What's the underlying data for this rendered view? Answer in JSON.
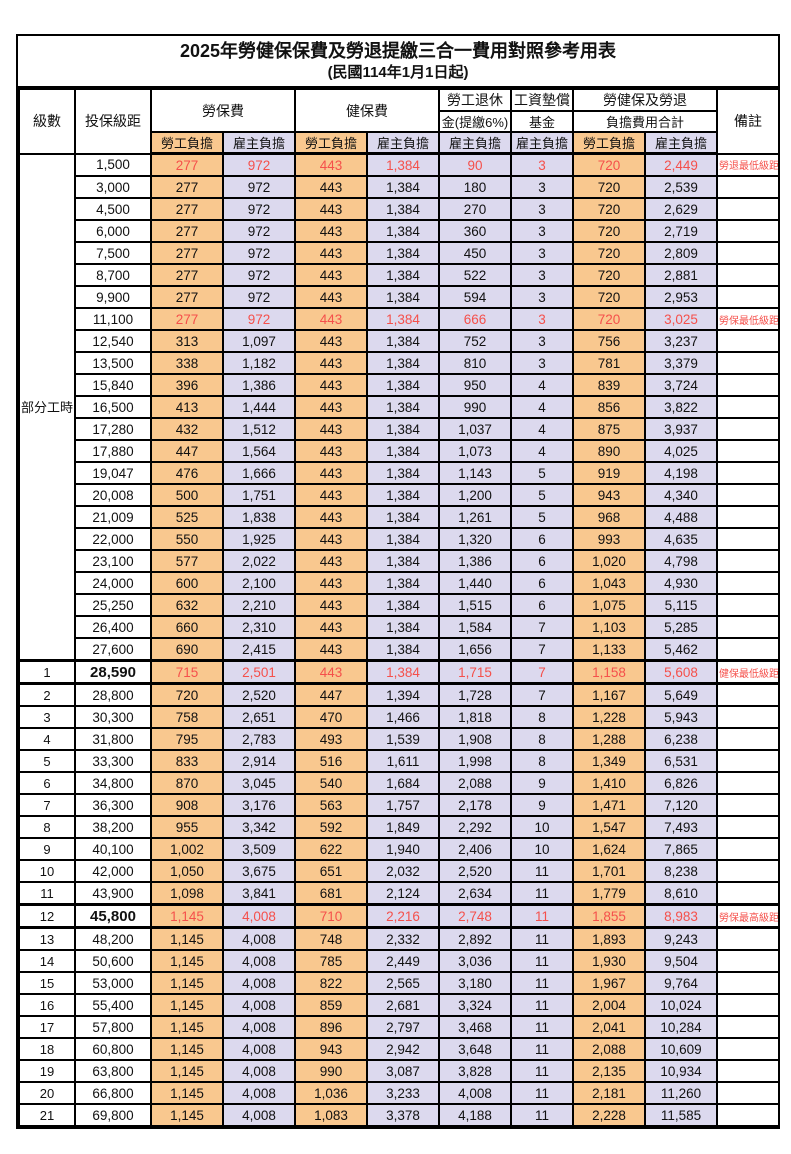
{
  "title": "2025年勞健保保費及勞退提繳三合一費用對照參考用表",
  "subtitle": "(民國114年1月1日起)",
  "colors": {
    "employee_bg": "#f9c88f",
    "employer_bg": "#dcd9ee",
    "highlight_text": "#f5504b",
    "grid": "#000000"
  },
  "header": {
    "level": "級數",
    "bracket": "投保級距",
    "labor_insurance": "勞保費",
    "health_insurance": "健保費",
    "pension_line1": "勞工退休",
    "pension_line2": "金(提繳6%)",
    "wage_fund_line1": "工資墊償",
    "wage_fund_line2": "基金",
    "total_line1": "勞健保及勞退",
    "total_line2": "負擔費用合計",
    "remark": "備註",
    "employee_label": "勞工負擔",
    "employer_label": "雇主負擔"
  },
  "column_value_names": [
    "labor-employee",
    "labor-employer",
    "health-employee",
    "health-employer",
    "pension-employer",
    "wage-fund-employer",
    "total-employee",
    "total-employer"
  ],
  "rows": [
    {
      "level": "部分工時",
      "levelRowspan": 23,
      "bracket": "1,500",
      "values": [
        "277",
        "972",
        "443",
        "1,384",
        "90",
        "3",
        "720",
        "2,449"
      ],
      "remark": "勞退最低級距",
      "red": true
    },
    {
      "bracket": "3,000",
      "values": [
        "277",
        "972",
        "443",
        "1,384",
        "180",
        "3",
        "720",
        "2,539"
      ],
      "remark": ""
    },
    {
      "bracket": "4,500",
      "values": [
        "277",
        "972",
        "443",
        "1,384",
        "270",
        "3",
        "720",
        "2,629"
      ],
      "remark": ""
    },
    {
      "bracket": "6,000",
      "values": [
        "277",
        "972",
        "443",
        "1,384",
        "360",
        "3",
        "720",
        "2,719"
      ],
      "remark": ""
    },
    {
      "bracket": "7,500",
      "values": [
        "277",
        "972",
        "443",
        "1,384",
        "450",
        "3",
        "720",
        "2,809"
      ],
      "remark": ""
    },
    {
      "bracket": "8,700",
      "values": [
        "277",
        "972",
        "443",
        "1,384",
        "522",
        "3",
        "720",
        "2,881"
      ],
      "remark": ""
    },
    {
      "bracket": "9,900",
      "values": [
        "277",
        "972",
        "443",
        "1,384",
        "594",
        "3",
        "720",
        "2,953"
      ],
      "remark": ""
    },
    {
      "bracket": "11,100",
      "values": [
        "277",
        "972",
        "443",
        "1,384",
        "666",
        "3",
        "720",
        "3,025"
      ],
      "remark": "勞保最低級距",
      "red": true
    },
    {
      "bracket": "12,540",
      "values": [
        "313",
        "1,097",
        "443",
        "1,384",
        "752",
        "3",
        "756",
        "3,237"
      ],
      "remark": ""
    },
    {
      "bracket": "13,500",
      "values": [
        "338",
        "1,182",
        "443",
        "1,384",
        "810",
        "3",
        "781",
        "3,379"
      ],
      "remark": ""
    },
    {
      "bracket": "15,840",
      "values": [
        "396",
        "1,386",
        "443",
        "1,384",
        "950",
        "4",
        "839",
        "3,724"
      ],
      "remark": ""
    },
    {
      "bracket": "16,500",
      "values": [
        "413",
        "1,444",
        "443",
        "1,384",
        "990",
        "4",
        "856",
        "3,822"
      ],
      "remark": ""
    },
    {
      "bracket": "17,280",
      "values": [
        "432",
        "1,512",
        "443",
        "1,384",
        "1,037",
        "4",
        "875",
        "3,937"
      ],
      "remark": ""
    },
    {
      "bracket": "17,880",
      "values": [
        "447",
        "1,564",
        "443",
        "1,384",
        "1,073",
        "4",
        "890",
        "4,025"
      ],
      "remark": ""
    },
    {
      "bracket": "19,047",
      "values": [
        "476",
        "1,666",
        "443",
        "1,384",
        "1,143",
        "5",
        "919",
        "4,198"
      ],
      "remark": ""
    },
    {
      "bracket": "20,008",
      "values": [
        "500",
        "1,751",
        "443",
        "1,384",
        "1,200",
        "5",
        "943",
        "4,340"
      ],
      "remark": ""
    },
    {
      "bracket": "21,009",
      "values": [
        "525",
        "1,838",
        "443",
        "1,384",
        "1,261",
        "5",
        "968",
        "4,488"
      ],
      "remark": ""
    },
    {
      "bracket": "22,000",
      "values": [
        "550",
        "1,925",
        "443",
        "1,384",
        "1,320",
        "6",
        "993",
        "4,635"
      ],
      "remark": ""
    },
    {
      "bracket": "23,100",
      "values": [
        "577",
        "2,022",
        "443",
        "1,384",
        "1,386",
        "6",
        "1,020",
        "4,798"
      ],
      "remark": ""
    },
    {
      "bracket": "24,000",
      "values": [
        "600",
        "2,100",
        "443",
        "1,384",
        "1,440",
        "6",
        "1,043",
        "4,930"
      ],
      "remark": ""
    },
    {
      "bracket": "25,250",
      "values": [
        "632",
        "2,210",
        "443",
        "1,384",
        "1,515",
        "6",
        "1,075",
        "5,115"
      ],
      "remark": ""
    },
    {
      "bracket": "26,400",
      "values": [
        "660",
        "2,310",
        "443",
        "1,384",
        "1,584",
        "7",
        "1,103",
        "5,285"
      ],
      "remark": ""
    },
    {
      "bracket": "27,600",
      "values": [
        "690",
        "2,415",
        "443",
        "1,384",
        "1,656",
        "7",
        "1,133",
        "5,462"
      ],
      "remark": ""
    },
    {
      "level": "1",
      "bracket": "28,590",
      "values": [
        "715",
        "2,501",
        "443",
        "1,384",
        "1,715",
        "7",
        "1,158",
        "5,608"
      ],
      "remark": "健保最低級距",
      "red": true,
      "bold": true,
      "thickTop": true,
      "thickBottom": true
    },
    {
      "level": "2",
      "bracket": "28,800",
      "values": [
        "720",
        "2,520",
        "447",
        "1,394",
        "1,728",
        "7",
        "1,167",
        "5,649"
      ],
      "remark": ""
    },
    {
      "level": "3",
      "bracket": "30,300",
      "values": [
        "758",
        "2,651",
        "470",
        "1,466",
        "1,818",
        "8",
        "1,228",
        "5,943"
      ],
      "remark": ""
    },
    {
      "level": "4",
      "bracket": "31,800",
      "values": [
        "795",
        "2,783",
        "493",
        "1,539",
        "1,908",
        "8",
        "1,288",
        "6,238"
      ],
      "remark": ""
    },
    {
      "level": "5",
      "bracket": "33,300",
      "values": [
        "833",
        "2,914",
        "516",
        "1,611",
        "1,998",
        "8",
        "1,349",
        "6,531"
      ],
      "remark": ""
    },
    {
      "level": "6",
      "bracket": "34,800",
      "values": [
        "870",
        "3,045",
        "540",
        "1,684",
        "2,088",
        "9",
        "1,410",
        "6,826"
      ],
      "remark": ""
    },
    {
      "level": "7",
      "bracket": "36,300",
      "values": [
        "908",
        "3,176",
        "563",
        "1,757",
        "2,178",
        "9",
        "1,471",
        "7,120"
      ],
      "remark": ""
    },
    {
      "level": "8",
      "bracket": "38,200",
      "values": [
        "955",
        "3,342",
        "592",
        "1,849",
        "2,292",
        "10",
        "1,547",
        "7,493"
      ],
      "remark": ""
    },
    {
      "level": "9",
      "bracket": "40,100",
      "values": [
        "1,002",
        "3,509",
        "622",
        "1,940",
        "2,406",
        "10",
        "1,624",
        "7,865"
      ],
      "remark": ""
    },
    {
      "level": "10",
      "bracket": "42,000",
      "values": [
        "1,050",
        "3,675",
        "651",
        "2,032",
        "2,520",
        "11",
        "1,701",
        "8,238"
      ],
      "remark": ""
    },
    {
      "level": "11",
      "bracket": "43,900",
      "values": [
        "1,098",
        "3,841",
        "681",
        "2,124",
        "2,634",
        "11",
        "1,779",
        "8,610"
      ],
      "remark": ""
    },
    {
      "level": "12",
      "bracket": "45,800",
      "values": [
        "1,145",
        "4,008",
        "710",
        "2,216",
        "2,748",
        "11",
        "1,855",
        "8,983"
      ],
      "remark": "勞保最高級距",
      "red": true,
      "bold": true,
      "thickTop": true,
      "thickBottom": true
    },
    {
      "level": "13",
      "bracket": "48,200",
      "values": [
        "1,145",
        "4,008",
        "748",
        "2,332",
        "2,892",
        "11",
        "1,893",
        "9,243"
      ],
      "remark": ""
    },
    {
      "level": "14",
      "bracket": "50,600",
      "values": [
        "1,145",
        "4,008",
        "785",
        "2,449",
        "3,036",
        "11",
        "1,930",
        "9,504"
      ],
      "remark": ""
    },
    {
      "level": "15",
      "bracket": "53,000",
      "values": [
        "1,145",
        "4,008",
        "822",
        "2,565",
        "3,180",
        "11",
        "1,967",
        "9,764"
      ],
      "remark": ""
    },
    {
      "level": "16",
      "bracket": "55,400",
      "values": [
        "1,145",
        "4,008",
        "859",
        "2,681",
        "3,324",
        "11",
        "2,004",
        "10,024"
      ],
      "remark": ""
    },
    {
      "level": "17",
      "bracket": "57,800",
      "values": [
        "1,145",
        "4,008",
        "896",
        "2,797",
        "3,468",
        "11",
        "2,041",
        "10,284"
      ],
      "remark": ""
    },
    {
      "level": "18",
      "bracket": "60,800",
      "values": [
        "1,145",
        "4,008",
        "943",
        "2,942",
        "3,648",
        "11",
        "2,088",
        "10,609"
      ],
      "remark": ""
    },
    {
      "level": "19",
      "bracket": "63,800",
      "values": [
        "1,145",
        "4,008",
        "990",
        "3,087",
        "3,828",
        "11",
        "2,135",
        "10,934"
      ],
      "remark": ""
    },
    {
      "level": "20",
      "bracket": "66,800",
      "values": [
        "1,145",
        "4,008",
        "1,036",
        "3,233",
        "4,008",
        "11",
        "2,181",
        "11,260"
      ],
      "remark": ""
    },
    {
      "level": "21",
      "bracket": "69,800",
      "values": [
        "1,145",
        "4,008",
        "1,083",
        "3,378",
        "4,188",
        "11",
        "2,228",
        "11,585"
      ],
      "remark": ""
    }
  ]
}
